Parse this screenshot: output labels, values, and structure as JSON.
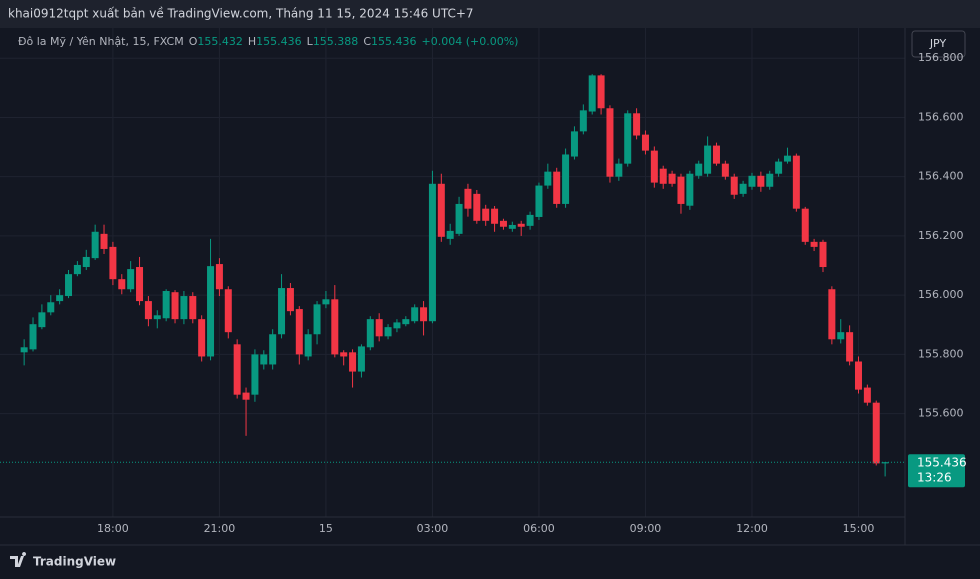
{
  "published": "khai0912tqpt xuất bản về TradingView.com, Tháng 11 15, 2024 15:46 UTC+7",
  "currency_button": "JPY",
  "brand": "TradingView",
  "chart_data": {
    "type": "candlestick",
    "title": "Đô la Mỹ / Yên Nhật, 15, FXCM",
    "ohlc_labels": [
      "O",
      "H",
      "L",
      "C"
    ],
    "change": "+0.004 (+0.00%)",
    "countdown": "13:26",
    "up_color": "#089981",
    "down_color": "#f23645",
    "grid": true,
    "xlim": [
      14.82,
      40.31
    ],
    "ylim": [
      155.251,
      156.902
    ],
    "xticks": [
      {
        "value": 18,
        "label": "18:00"
      },
      {
        "value": 21,
        "label": "21:00"
      },
      {
        "value": 24,
        "label": "15"
      },
      {
        "value": 27,
        "label": "03:00"
      },
      {
        "value": 30,
        "label": "06:00"
      },
      {
        "value": 33,
        "label": "09:00"
      },
      {
        "value": 36,
        "label": "12:00"
      },
      {
        "value": 39,
        "label": "15:00"
      }
    ],
    "yticks": [
      {
        "value": 155.6,
        "label": "155.600"
      },
      {
        "value": 155.8,
        "label": "155.800"
      },
      {
        "value": 156,
        "label": "156.000"
      },
      {
        "value": 156.2,
        "label": "156.200"
      },
      {
        "value": 156.4,
        "label": "156.400"
      },
      {
        "value": 156.6,
        "label": "156.600"
      },
      {
        "value": 156.8,
        "label": "156.800"
      }
    ],
    "x": [
      15.5,
      15.75,
      16,
      16.25,
      16.5,
      16.75,
      17,
      17.25,
      17.5,
      17.75,
      18,
      18.25,
      18.5,
      18.75,
      19,
      19.25,
      19.5,
      19.75,
      20,
      20.25,
      20.5,
      20.75,
      21,
      21.25,
      21.5,
      21.75,
      22,
      22.25,
      22.5,
      22.75,
      23,
      23.25,
      23.5,
      23.75,
      24,
      24.25,
      24.5,
      24.75,
      25,
      25.25,
      25.5,
      25.75,
      26,
      26.25,
      26.5,
      26.75,
      27,
      27.25,
      27.5,
      27.75,
      28,
      28.25,
      28.5,
      28.75,
      29,
      29.25,
      29.5,
      29.75,
      30,
      30.25,
      30.5,
      30.75,
      31,
      31.25,
      31.5,
      31.75,
      32,
      32.25,
      32.5,
      32.75,
      33,
      33.25,
      33.5,
      33.75,
      34,
      34.25,
      34.5,
      34.75,
      35,
      35.25,
      35.5,
      35.75,
      36,
      36.25,
      36.5,
      36.75,
      37,
      37.25,
      37.5,
      37.75,
      38,
      38.25,
      38.5,
      38.75,
      39,
      39.25,
      39.5,
      39.75
    ],
    "open": [
      155.807,
      155.817,
      155.892,
      155.942,
      155.98,
      155.997,
      156.071,
      156.095,
      156.125,
      156.207,
      156.163,
      156.054,
      156.02,
      156.095,
      155.98,
      155.919,
      155.922,
      156.01,
      155.919,
      155.997,
      155.919,
      155.793,
      156.105,
      156.02,
      155.834,
      155.671,
      155.664,
      155.766,
      155.766,
      155.868,
      156.024,
      155.953,
      155.793,
      155.868,
      155.969,
      155.986,
      155.807,
      155.807,
      155.742,
      155.824,
      155.919,
      155.861,
      155.888,
      155.902,
      155.912,
      155.959,
      155.912,
      156.376,
      156.19,
      156.207,
      156.359,
      156.342,
      156.292,
      156.292,
      156.251,
      156.224,
      156.241,
      156.234,
      156.264,
      156.37,
      156.417,
      156.308,
      156.468,
      156.553,
      156.62,
      156.742,
      156.631,
      156.4,
      156.444,
      156.614,
      156.542,
      156.488,
      156.427,
      156.41,
      156.4,
      156.302,
      156.403,
      156.41,
      156.505,
      156.444,
      156.4,
      156.342,
      156.366,
      156.403,
      156.366,
      156.41,
      156.451,
      156.471,
      156.292,
      156.18,
      156.18,
      156.02,
      155.851,
      155.875,
      155.776,
      155.688,
      155.637,
      155.432
    ],
    "high": [
      155.851,
      155.925,
      155.969,
      156.0,
      156.02,
      156.085,
      156.115,
      156.153,
      156.238,
      156.238,
      156.18,
      156.071,
      156.115,
      156.129,
      155.997,
      155.949,
      156.02,
      156.017,
      156.014,
      156.01,
      155.932,
      156.19,
      156.125,
      156.03,
      155.851,
      155.688,
      155.817,
      155.814,
      155.885,
      156.071,
      156.041,
      155.963,
      155.885,
      155.98,
      156.014,
      156.034,
      155.814,
      155.817,
      155.834,
      155.929,
      155.939,
      155.902,
      155.919,
      155.929,
      155.969,
      155.98,
      156.42,
      156.41,
      156.241,
      156.332,
      156.376,
      156.355,
      156.305,
      156.301,
      156.258,
      156.248,
      156.251,
      156.282,
      156.38,
      156.444,
      156.43,
      156.495,
      156.57,
      156.644,
      156.746,
      156.746,
      156.641,
      156.461,
      156.624,
      156.631,
      156.556,
      156.502,
      156.437,
      156.42,
      156.41,
      156.42,
      156.454,
      156.536,
      156.515,
      156.454,
      156.41,
      156.386,
      156.413,
      156.417,
      156.42,
      156.461,
      156.498,
      156.478,
      156.298,
      156.19,
      156.187,
      156.03,
      155.919,
      155.898,
      155.793,
      155.698,
      155.644,
      155.436
    ],
    "low": [
      155.763,
      155.81,
      155.885,
      155.932,
      155.969,
      155.99,
      156.064,
      156.085,
      156.119,
      156.139,
      156.034,
      156.003,
      156.01,
      155.966,
      155.895,
      155.888,
      155.912,
      155.905,
      155.902,
      155.905,
      155.776,
      155.78,
      155.997,
      155.854,
      155.651,
      155.525,
      155.64,
      155.749,
      155.749,
      155.854,
      155.932,
      155.766,
      155.78,
      155.834,
      155.956,
      155.79,
      155.763,
      155.688,
      155.722,
      155.814,
      155.844,
      155.851,
      155.875,
      155.895,
      155.905,
      155.864,
      155.905,
      156.18,
      156.17,
      156.2,
      156.265,
      156.241,
      156.234,
      156.214,
      156.221,
      156.214,
      156.2,
      156.221,
      156.254,
      156.359,
      156.295,
      156.295,
      156.458,
      156.543,
      156.61,
      156.61,
      156.38,
      156.386,
      156.434,
      156.526,
      156.475,
      156.363,
      156.359,
      156.366,
      156.275,
      156.288,
      156.393,
      156.4,
      156.437,
      156.39,
      156.325,
      156.332,
      156.356,
      156.349,
      156.356,
      156.4,
      156.444,
      156.282,
      156.17,
      156.149,
      156.078,
      155.834,
      155.837,
      155.763,
      155.668,
      155.627,
      155.425,
      155.388
    ],
    "close": [
      155.824,
      155.902,
      155.942,
      155.976,
      156.0,
      156.071,
      156.102,
      156.129,
      156.214,
      156.156,
      156.054,
      156.02,
      156.088,
      155.98,
      155.919,
      155.932,
      156.014,
      155.919,
      155.997,
      155.919,
      155.793,
      156.098,
      156.02,
      155.875,
      155.664,
      155.647,
      155.8,
      155.8,
      155.868,
      156.024,
      155.946,
      155.8,
      155.868,
      155.969,
      155.986,
      155.8,
      155.793,
      155.742,
      155.827,
      155.919,
      155.861,
      155.892,
      155.908,
      155.919,
      155.959,
      155.912,
      156.376,
      156.197,
      156.217,
      156.308,
      156.292,
      156.251,
      156.251,
      156.241,
      156.231,
      156.237,
      156.231,
      156.271,
      156.37,
      156.417,
      156.308,
      156.475,
      156.553,
      156.624,
      156.742,
      156.631,
      156.4,
      156.444,
      156.614,
      156.539,
      156.488,
      156.38,
      156.376,
      156.376,
      156.308,
      156.41,
      156.444,
      156.505,
      156.444,
      156.4,
      156.339,
      156.376,
      156.403,
      156.366,
      156.41,
      156.451,
      156.471,
      156.292,
      156.18,
      156.163,
      156.095,
      155.851,
      155.875,
      155.776,
      155.681,
      155.637,
      155.432,
      155.436
    ]
  }
}
